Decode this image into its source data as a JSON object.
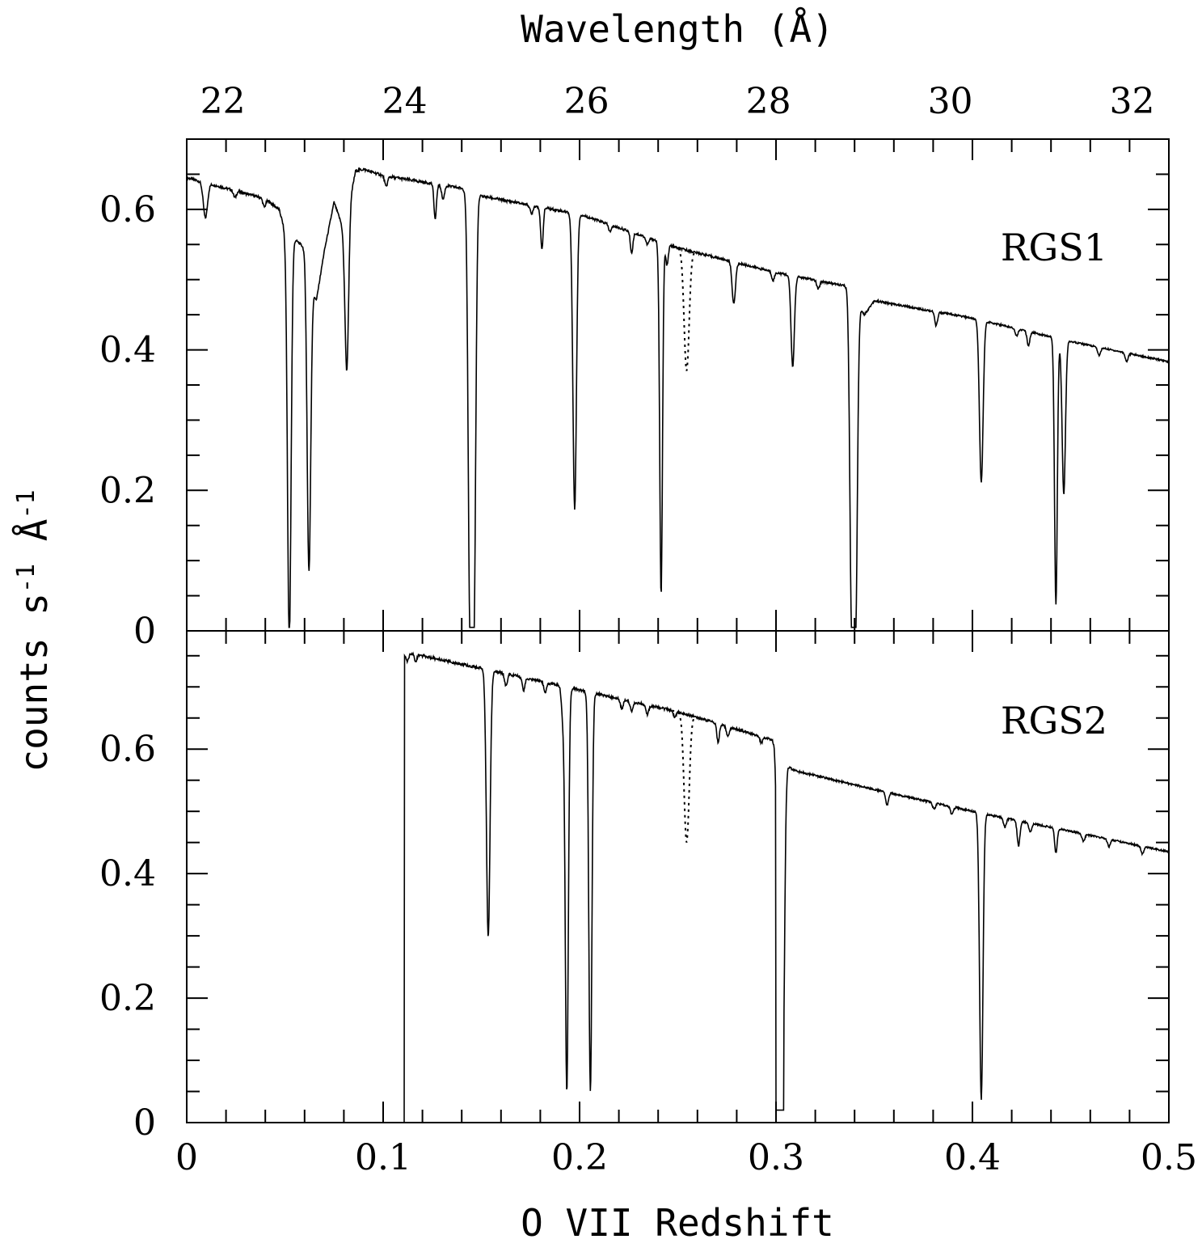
{
  "chart_data": {
    "type": "line",
    "top_axis": {
      "label": "Wavelength (Å)",
      "ticks": [
        22,
        24,
        26,
        28,
        30,
        32
      ],
      "range": [
        21.6028,
        32.4042
      ]
    },
    "bottom_axis": {
      "label": "O VII Redshift",
      "ticks": [
        0,
        0.1,
        0.2,
        0.3,
        0.4,
        0.5
      ],
      "tick_labels": [
        "0",
        "0.1",
        "0.2",
        "0.3",
        "0.4",
        "0.5"
      ],
      "range": [
        0,
        0.5
      ]
    },
    "y_axis": {
      "label_parts": [
        "counts s",
        "-1",
        " Å",
        "-1"
      ]
    },
    "panels": [
      {
        "label": "RGS1",
        "ylim": [
          0,
          0.7
        ],
        "yticks": [
          0,
          0.2,
          0.4,
          0.6
        ],
        "ytick_labels": [
          "0",
          "0.2",
          "0.4",
          "0.6"
        ],
        "continuum": [
          [
            0,
            0.645
          ],
          [
            0.04,
            0.615
          ],
          [
            0.047,
            0.6
          ],
          [
            0.05,
            0.57
          ],
          [
            0.06,
            0.545
          ],
          [
            0.0625,
            0.5
          ],
          [
            0.066,
            0.47
          ],
          [
            0.07,
            0.54
          ],
          [
            0.075,
            0.61
          ],
          [
            0.08,
            0.57
          ],
          [
            0.086,
            0.655
          ],
          [
            0.09,
            0.657
          ],
          [
            0.1,
            0.648
          ],
          [
            0.14,
            0.63
          ],
          [
            0.148,
            0.62
          ],
          [
            0.2,
            0.593
          ],
          [
            0.25,
            0.545
          ],
          [
            0.3,
            0.51
          ],
          [
            0.337,
            0.49
          ],
          [
            0.345,
            0.45
          ],
          [
            0.35,
            0.47
          ],
          [
            0.4,
            0.445
          ],
          [
            0.45,
            0.412
          ],
          [
            0.5,
            0.383
          ]
        ],
        "gap_threshold": null,
        "gaps": [],
        "lines": [
          {
            "z": 0.0095,
            "depth": 0.05,
            "width": 0.0015
          },
          {
            "z": 0.0245,
            "depth": 0.01,
            "width": 0.001
          },
          {
            "z": 0.0395,
            "depth": 0.012,
            "width": 0.001
          },
          {
            "z": 0.0522,
            "depth": 0.58,
            "width": 0.0013
          },
          {
            "z": 0.0622,
            "depth": 0.42,
            "width": 0.0013
          },
          {
            "z": 0.0815,
            "depth": 0.22,
            "width": 0.0013
          },
          {
            "z": 0.1015,
            "depth": 0.015,
            "width": 0.001
          },
          {
            "z": 0.1265,
            "depth": 0.05,
            "width": 0.0009
          },
          {
            "z": 0.1305,
            "depth": 0.02,
            "width": 0.001
          },
          {
            "z": 0.1442,
            "depth": 0.6,
            "width": 0.0013
          },
          {
            "z": 0.1462,
            "depth": 0.6,
            "width": 0.0013
          },
          {
            "z": 0.1755,
            "depth": 0.012,
            "width": 0.001
          },
          {
            "z": 0.1808,
            "depth": 0.06,
            "width": 0.0009
          },
          {
            "z": 0.1975,
            "depth": 0.42,
            "width": 0.0013
          },
          {
            "z": 0.2155,
            "depth": 0.01,
            "width": 0.001
          },
          {
            "z": 0.2265,
            "depth": 0.03,
            "width": 0.0009
          },
          {
            "z": 0.2345,
            "depth": 0.01,
            "width": 0.001
          },
          {
            "z": 0.2415,
            "depth": 0.5,
            "width": 0.001
          },
          {
            "z": 0.2445,
            "depth": 0.03,
            "width": 0.0009
          },
          {
            "z": 0.2785,
            "depth": 0.06,
            "width": 0.0012
          },
          {
            "z": 0.2985,
            "depth": 0.012,
            "width": 0.001
          },
          {
            "z": 0.3085,
            "depth": 0.13,
            "width": 0.0012
          },
          {
            "z": 0.3215,
            "depth": 0.012,
            "width": 0.001
          },
          {
            "z": 0.3385,
            "depth": 0.46,
            "width": 0.0013
          },
          {
            "z": 0.3405,
            "depth": 0.46,
            "width": 0.0013
          },
          {
            "z": 0.3815,
            "depth": 0.02,
            "width": 0.001
          },
          {
            "z": 0.4045,
            "depth": 0.23,
            "width": 0.0013
          },
          {
            "z": 0.4225,
            "depth": 0.01,
            "width": 0.001
          },
          {
            "z": 0.4285,
            "depth": 0.02,
            "width": 0.001
          },
          {
            "z": 0.4425,
            "depth": 0.38,
            "width": 0.001
          },
          {
            "z": 0.4465,
            "depth": 0.22,
            "width": 0.0012
          },
          {
            "z": 0.4645,
            "depth": 0.012,
            "width": 0.001
          },
          {
            "z": 0.4785,
            "depth": 0.012,
            "width": 0.001
          }
        ],
        "dotted_model": {
          "z_range": [
            0.247,
            0.262
          ],
          "z_center": 0.2545,
          "y_min": 0.37
        }
      },
      {
        "label": "RGS2",
        "ylim": [
          0,
          0.79
        ],
        "yticks": [
          0,
          0.2,
          0.4,
          0.6
        ],
        "ytick_labels": [
          "0",
          "0.2",
          "0.4",
          "0.6"
        ],
        "continuum": [
          [
            0.1108,
            0.75
          ],
          [
            0.115,
            0.755
          ],
          [
            0.12,
            0.75
          ],
          [
            0.15,
            0.73
          ],
          [
            0.2,
            0.695
          ],
          [
            0.25,
            0.66
          ],
          [
            0.298,
            0.615
          ],
          [
            0.304,
            0.575
          ],
          [
            0.31,
            0.565
          ],
          [
            0.35,
            0.535
          ],
          [
            0.4,
            0.5
          ],
          [
            0.45,
            0.468
          ],
          [
            0.5,
            0.435
          ]
        ],
        "gap_threshold": 0.1108,
        "gaps": [
          [
            0.3,
            0.304
          ]
        ],
        "lines": [
          {
            "z": 0.1125,
            "depth": 0.01,
            "width": 0.001
          },
          {
            "z": 0.1165,
            "depth": 0.012,
            "width": 0.001
          },
          {
            "z": 0.1535,
            "depth": 0.43,
            "width": 0.0013
          },
          {
            "z": 0.1625,
            "depth": 0.02,
            "width": 0.001
          },
          {
            "z": 0.1715,
            "depth": 0.02,
            "width": 0.001
          },
          {
            "z": 0.1825,
            "depth": 0.015,
            "width": 0.001
          },
          {
            "z": 0.1915,
            "depth": 0.05,
            "width": 0.001
          },
          {
            "z": 0.1935,
            "depth": 0.65,
            "width": 0.0011
          },
          {
            "z": 0.2055,
            "depth": 0.64,
            "width": 0.0011
          },
          {
            "z": 0.2215,
            "depth": 0.015,
            "width": 0.001
          },
          {
            "z": 0.2265,
            "depth": 0.015,
            "width": 0.001
          },
          {
            "z": 0.2345,
            "depth": 0.015,
            "width": 0.001
          },
          {
            "z": 0.2485,
            "depth": 0.01,
            "width": 0.001
          },
          {
            "z": 0.2705,
            "depth": 0.03,
            "width": 0.0009
          },
          {
            "z": 0.2755,
            "depth": 0.015,
            "width": 0.001
          },
          {
            "z": 0.2925,
            "depth": 0.01,
            "width": 0.001
          },
          {
            "z": 0.3015,
            "depth": 0.5,
            "width": 0.0012
          },
          {
            "z": 0.3035,
            "depth": 0.5,
            "width": 0.0012
          },
          {
            "z": 0.3565,
            "depth": 0.02,
            "width": 0.001
          },
          {
            "z": 0.3805,
            "depth": 0.01,
            "width": 0.001
          },
          {
            "z": 0.3895,
            "depth": 0.012,
            "width": 0.001
          },
          {
            "z": 0.4045,
            "depth": 0.46,
            "width": 0.0012
          },
          {
            "z": 0.4165,
            "depth": 0.015,
            "width": 0.001
          },
          {
            "z": 0.4235,
            "depth": 0.04,
            "width": 0.001
          },
          {
            "z": 0.4295,
            "depth": 0.015,
            "width": 0.001
          },
          {
            "z": 0.4425,
            "depth": 0.04,
            "width": 0.0009
          },
          {
            "z": 0.4565,
            "depth": 0.012,
            "width": 0.001
          },
          {
            "z": 0.4695,
            "depth": 0.012,
            "width": 0.001
          },
          {
            "z": 0.4865,
            "depth": 0.012,
            "width": 0.001
          }
        ],
        "dotted_model": {
          "z_range": [
            0.247,
            0.262
          ],
          "z_center": 0.2545,
          "y_min": 0.45
        }
      }
    ]
  }
}
